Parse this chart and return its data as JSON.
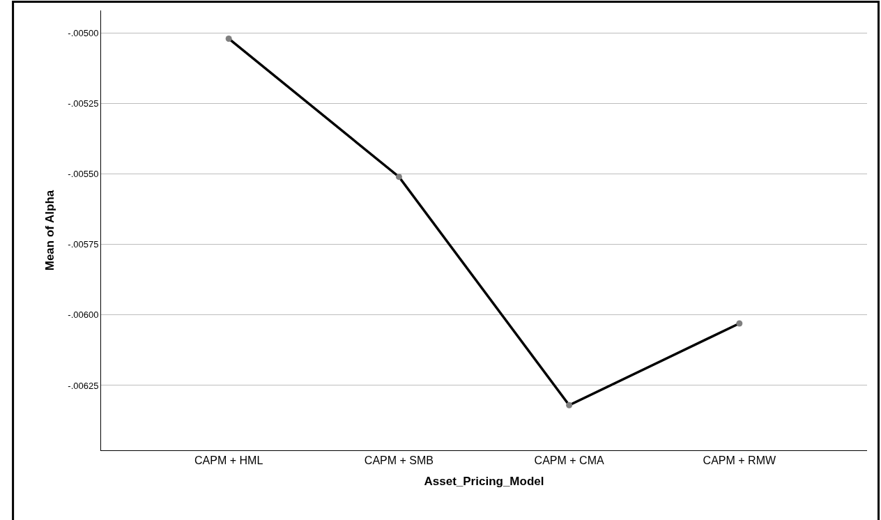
{
  "chart_data": {
    "type": "line",
    "xlabel": "Asset_Pricing_Model",
    "ylabel": "Mean of Alpha",
    "categories": [
      "CAPM + HML",
      "CAPM + SMB",
      "CAPM + CMA",
      "CAPM + RMW"
    ],
    "series": [
      {
        "color": "#000000",
        "values": [
          -0.00502,
          -0.00551,
          -0.00632,
          -0.00603
        ]
      }
    ],
    "ylim": [
      -0.00648,
      -0.00492
    ],
    "yticks": [
      {
        "value": -0.005,
        "label": "-.00500"
      },
      {
        "value": -0.00525,
        "label": "-.00525"
      },
      {
        "value": -0.0055,
        "label": "-.00550"
      },
      {
        "value": -0.00575,
        "label": "-.00575"
      },
      {
        "value": -0.006,
        "label": "-.00600"
      },
      {
        "value": -0.00625,
        "label": "-.00625"
      }
    ],
    "grid": "y",
    "marker": "circle",
    "line_style": "solid"
  }
}
